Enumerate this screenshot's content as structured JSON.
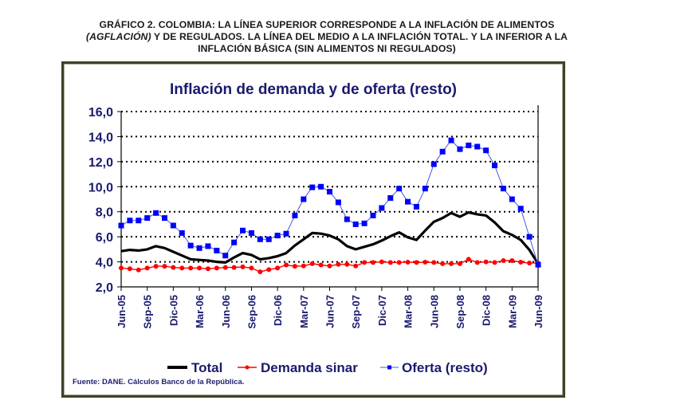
{
  "caption": {
    "line1": "GRÁFICO 2. COLOMBIA: LA LÍNEA SUPERIOR CORRESPONDE A LA INFLACIÓN DE ALIMENTOS",
    "line2_italic": "(AGFLACIÓN)",
    "line2_rest": " Y DE REGULADOS. LA LÍNEA DEL MEDIO A LA INFLACIÓN TOTAL. Y LA INFERIOR A LA",
    "line3": "INFLACIÓN BÁSICA (SIN ALIMENTOS NI REGULADOS)"
  },
  "source": "Fuente: DANE. Cálculos Banco de la República.",
  "colors": {
    "frame": "#3d4128",
    "text": "#1a1a6e",
    "total": "#000000",
    "demanda": "#ff0000",
    "oferta_marker": "#0000ff",
    "oferta_line": "#4a5ad8"
  },
  "chart_data": {
    "type": "line",
    "title": "Inflación de demanda y de oferta (resto)",
    "xlabel": "",
    "ylabel": "",
    "ylim": [
      2,
      16
    ],
    "yticks": [
      "2,0",
      "4,0",
      "6,0",
      "8,0",
      "10,0",
      "12,0",
      "14,0",
      "16,0"
    ],
    "ytick_values": [
      2,
      4,
      6,
      8,
      10,
      12,
      14,
      16
    ],
    "grid": "horizontal dotted",
    "legend_position": "bottom",
    "xtick_labels": [
      "Jun-05",
      "Sep-05",
      "Dic-05",
      "Mar-06",
      "Jun-06",
      "Sep-06",
      "Dic-06",
      "Mar-07",
      "Jun-07",
      "Sep-07",
      "Dic-07",
      "Mar-08",
      "Jun-08",
      "Sep-08",
      "Dic-08",
      "Mar-09",
      "Jun-09"
    ],
    "x": [
      "Jun-05",
      "Jul-05",
      "Ago-05",
      "Sep-05",
      "Oct-05",
      "Nov-05",
      "Dic-05",
      "Ene-06",
      "Feb-06",
      "Mar-06",
      "Abr-06",
      "May-06",
      "Jun-06",
      "Jul-06",
      "Ago-06",
      "Sep-06",
      "Oct-06",
      "Nov-06",
      "Dic-06",
      "Ene-07",
      "Feb-07",
      "Mar-07",
      "Abr-07",
      "May-07",
      "Jun-07",
      "Jul-07",
      "Ago-07",
      "Sep-07",
      "Oct-07",
      "Nov-07",
      "Dic-07",
      "Ene-08",
      "Feb-08",
      "Mar-08",
      "Abr-08",
      "May-08",
      "Jun-08",
      "Jul-08",
      "Ago-08",
      "Sep-08",
      "Oct-08",
      "Nov-08",
      "Dic-08",
      "Ene-09",
      "Feb-09",
      "Mar-09",
      "Abr-09",
      "May-09",
      "Jun-09"
    ],
    "series": [
      {
        "name": "Total",
        "style": "thick-line",
        "values": [
          4.85,
          4.95,
          4.9,
          5.0,
          5.25,
          5.1,
          4.8,
          4.5,
          4.2,
          4.15,
          4.1,
          4.0,
          3.95,
          4.35,
          4.7,
          4.55,
          4.2,
          4.3,
          4.45,
          4.7,
          5.3,
          5.8,
          6.3,
          6.25,
          6.1,
          5.8,
          5.25,
          5.0,
          5.2,
          5.4,
          5.7,
          6.05,
          6.35,
          5.95,
          5.75,
          6.5,
          7.2,
          7.5,
          7.9,
          7.6,
          7.95,
          7.8,
          7.7,
          7.15,
          6.45,
          6.15,
          5.75,
          4.95,
          3.85
        ]
      },
      {
        "name": "Demanda sinar",
        "style": "line-circle",
        "values": [
          3.5,
          3.45,
          3.35,
          3.5,
          3.65,
          3.65,
          3.55,
          3.5,
          3.5,
          3.5,
          3.45,
          3.5,
          3.55,
          3.55,
          3.6,
          3.5,
          3.2,
          3.38,
          3.5,
          3.75,
          3.65,
          3.67,
          3.85,
          3.75,
          3.67,
          3.8,
          3.8,
          3.67,
          3.95,
          3.95,
          4.0,
          3.95,
          3.95,
          3.97,
          3.95,
          3.97,
          3.95,
          3.85,
          3.85,
          3.85,
          4.2,
          3.95,
          4.0,
          3.95,
          4.1,
          4.1,
          3.97,
          3.9,
          3.9
        ]
      },
      {
        "name": "Oferta (resto)",
        "style": "line-square",
        "values": [
          6.9,
          7.3,
          7.3,
          7.5,
          7.9,
          7.5,
          6.9,
          6.3,
          5.3,
          5.1,
          5.25,
          4.9,
          4.5,
          5.55,
          6.5,
          6.3,
          5.8,
          5.8,
          6.1,
          6.25,
          7.7,
          9.0,
          9.95,
          10.0,
          9.6,
          8.75,
          7.4,
          7.0,
          7.07,
          7.7,
          8.3,
          9.1,
          9.85,
          8.8,
          8.4,
          9.85,
          11.8,
          12.8,
          13.7,
          13.0,
          13.3,
          13.2,
          12.9,
          11.7,
          9.85,
          9.0,
          8.25,
          6.0,
          3.77
        ]
      }
    ]
  }
}
